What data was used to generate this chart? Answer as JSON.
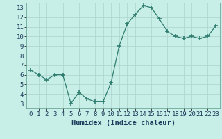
{
  "x_data": [
    0,
    1,
    2,
    3,
    4,
    5,
    6,
    7,
    8,
    9,
    10,
    11,
    12,
    13,
    14,
    15,
    16,
    17,
    18,
    19,
    20,
    21,
    22,
    23
  ],
  "y_data": [
    6.5,
    6.0,
    5.5,
    6.0,
    6.0,
    3.0,
    4.2,
    3.5,
    3.2,
    3.2,
    5.2,
    9.0,
    11.3,
    12.3,
    13.2,
    13.0,
    11.8,
    10.5,
    10.0,
    9.8,
    10.0,
    9.8,
    10.0,
    11.1
  ],
  "line_color": "#2e7d6e",
  "marker": "+",
  "marker_size": 4,
  "bg_color": "#c8eee8",
  "grid_color": "#b0d8d0",
  "xlabel": "Humidex (Indice chaleur)",
  "ylim": [
    2.5,
    13.5
  ],
  "xlim": [
    -0.5,
    23.5
  ],
  "yticks": [
    3,
    4,
    5,
    6,
    7,
    8,
    9,
    10,
    11,
    12,
    13
  ],
  "xticks": [
    0,
    1,
    2,
    3,
    4,
    5,
    6,
    7,
    8,
    9,
    10,
    11,
    12,
    13,
    14,
    15,
    16,
    17,
    18,
    19,
    20,
    21,
    22,
    23
  ],
  "tick_fontsize": 6.5,
  "xlabel_fontsize": 7.5
}
